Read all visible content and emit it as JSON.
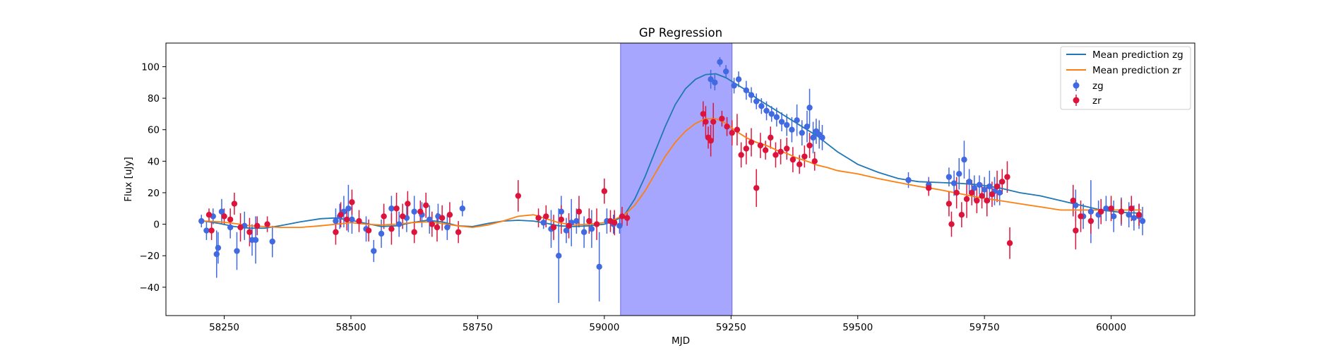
{
  "chart_data": {
    "type": "scatter",
    "title": "GP Regression",
    "xlabel": "MJD",
    "ylabel": "Flux [uJy]",
    "xlim": [
      58135,
      60165
    ],
    "ylim": [
      -58,
      115
    ],
    "xticks": [
      58250,
      58500,
      58750,
      59000,
      59250,
      59500,
      59750,
      60000
    ],
    "yticks": [
      -40,
      -20,
      0,
      20,
      40,
      60,
      80,
      100
    ],
    "grid": false,
    "legend_position": "top-right",
    "shaded_region": {
      "x_start": 59032,
      "x_end": 59252,
      "color": "#a6a6ff",
      "edge_color": "#6b6bdd"
    },
    "series": [
      {
        "name": "Mean prediction zg",
        "kind": "line",
        "color": "#1f77b4",
        "x": [
          58210,
          58240,
          58270,
          58300,
          58330,
          58360,
          58400,
          58440,
          58470,
          58500,
          58530,
          58560,
          58590,
          58620,
          58650,
          58680,
          58710,
          58740,
          58770,
          58800,
          58830,
          58860,
          58880,
          58910,
          58940,
          58970,
          59000,
          59020,
          59040,
          59060,
          59080,
          59100,
          59120,
          59140,
          59160,
          59180,
          59200,
          59220,
          59240,
          59260,
          59280,
          59300,
          59320,
          59340,
          59360,
          59380,
          59400,
          59420,
          59440,
          59460,
          59480,
          59500,
          59540,
          59580,
          59620,
          59660,
          59700,
          59740,
          59780,
          59820,
          59860,
          59900,
          59940,
          59980,
          60020,
          60060
        ],
        "y": [
          2,
          0.5,
          -1.5,
          -2.5,
          -2.5,
          -1,
          1.5,
          3.5,
          4,
          2.5,
          0.5,
          -1.5,
          -1,
          1,
          2.5,
          1.5,
          -1,
          -1.5,
          0.5,
          2,
          2.5,
          2,
          1,
          -1,
          -1.5,
          -1,
          0,
          2,
          6,
          16,
          30,
          46,
          62,
          76,
          86,
          92,
          95,
          95.5,
          93,
          89,
          85,
          80,
          76,
          72,
          68,
          64,
          60,
          56,
          51,
          46,
          42,
          38,
          33,
          29,
          27,
          26.5,
          26,
          25,
          23,
          20,
          18,
          15,
          12,
          9,
          7.5,
          7
        ]
      },
      {
        "name": "Mean prediction zr",
        "kind": "line",
        "color": "#ff7f0e",
        "x": [
          58210,
          58240,
          58270,
          58300,
          58330,
          58360,
          58400,
          58440,
          58470,
          58500,
          58530,
          58560,
          58590,
          58620,
          58650,
          58680,
          58710,
          58740,
          58770,
          58800,
          58830,
          58860,
          58880,
          58910,
          58940,
          58970,
          59000,
          59020,
          59040,
          59060,
          59080,
          59100,
          59120,
          59140,
          59160,
          59180,
          59200,
          59220,
          59240,
          59260,
          59280,
          59300,
          59320,
          59340,
          59360,
          59380,
          59400,
          59420,
          59440,
          59460,
          59480,
          59500,
          59540,
          59580,
          59620,
          59660,
          59700,
          59740,
          59780,
          59820,
          59860,
          59900,
          59940,
          59980,
          60020,
          60060
        ],
        "y": [
          2,
          1.5,
          0.5,
          -1,
          -1.5,
          -2,
          -2,
          -1,
          0,
          1,
          0,
          -0.5,
          0,
          1,
          1.5,
          0.5,
          -1,
          -2,
          -0.5,
          2,
          5,
          6,
          4,
          1,
          -0.5,
          0,
          1,
          3,
          6,
          12,
          21,
          32,
          43,
          52,
          59,
          64,
          67,
          67,
          64,
          59,
          55,
          52,
          50,
          47,
          45,
          42,
          40,
          37.5,
          36,
          34,
          33,
          32,
          29,
          26.5,
          24,
          22,
          19.5,
          17,
          15,
          13,
          11,
          9,
          9,
          9,
          9,
          9
        ]
      },
      {
        "name": "zg",
        "kind": "errorbar",
        "color": "#4169e1",
        "x": [
          58205,
          58215,
          58228,
          58235,
          58238,
          58245,
          58262,
          58275,
          58290,
          58305,
          58312,
          58345,
          58470,
          58478,
          58486,
          58495,
          58502,
          58530,
          58545,
          58560,
          58580,
          58595,
          58610,
          58625,
          58640,
          58655,
          58672,
          58690,
          58720,
          58880,
          58895,
          58910,
          58915,
          58925,
          58935,
          58945,
          58960,
          58975,
          58990,
          59005,
          59018,
          59030,
          59210,
          59218,
          59228,
          59240,
          59256,
          59265,
          59280,
          59290,
          59300,
          59310,
          59320,
          59330,
          59340,
          59350,
          59360,
          59370,
          59380,
          59390,
          59400,
          59405,
          59412,
          59418,
          59424,
          59430,
          59600,
          59640,
          59680,
          59690,
          59700,
          59710,
          59720,
          59730,
          59740,
          59750,
          59760,
          59770,
          59780,
          59930,
          59945,
          59960,
          59975,
          59990,
          60005,
          60020,
          60035,
          60045,
          60055,
          60062
        ],
        "y": [
          2,
          -4,
          5,
          -19,
          -15,
          8,
          -2,
          -17,
          -1,
          -10,
          -10,
          -11,
          2,
          5,
          8,
          10,
          3,
          -3,
          -17,
          -6,
          10,
          0,
          4,
          8,
          6,
          3,
          5,
          -2,
          10,
          1,
          -3,
          -20,
          8,
          -4,
          1,
          2,
          -5,
          -3,
          -27,
          2,
          0,
          -1,
          92,
          90,
          103,
          97,
          88,
          92,
          85,
          82,
          78,
          75,
          72,
          70,
          68,
          65,
          63,
          60,
          66,
          58,
          62,
          74,
          55,
          59,
          57,
          55,
          28,
          25,
          30,
          26,
          32,
          41,
          27,
          23,
          25,
          22,
          24,
          21,
          20,
          12,
          5,
          8,
          6,
          10,
          5,
          8,
          6,
          4,
          5,
          2
        ],
        "yerr": [
          4,
          6,
          5,
          15,
          10,
          8,
          7,
          12,
          9,
          10,
          15,
          10,
          8,
          8,
          10,
          15,
          9,
          8,
          7,
          9,
          8,
          8,
          9,
          10,
          8,
          9,
          8,
          8,
          5,
          4,
          12,
          30,
          10,
          8,
          15,
          8,
          10,
          12,
          22,
          8,
          6,
          5,
          6,
          5,
          3,
          4,
          5,
          5,
          6,
          5,
          5,
          5,
          6,
          5,
          6,
          6,
          7,
          8,
          10,
          8,
          10,
          12,
          10,
          8,
          9,
          8,
          5,
          5,
          6,
          8,
          10,
          12,
          8,
          8,
          6,
          8,
          10,
          9,
          8,
          10,
          8,
          20,
          9,
          8,
          10,
          9,
          8,
          8,
          8,
          9
        ]
      },
      {
        "name": "zr",
        "kind": "errorbar",
        "color": "#dc143c",
        "x": [
          58220,
          58225,
          58250,
          58262,
          58270,
          58282,
          58300,
          58315,
          58335,
          58470,
          58480,
          58492,
          58502,
          58516,
          58535,
          58565,
          58580,
          58590,
          58602,
          58612,
          58625,
          58637,
          58648,
          58660,
          58670,
          58680,
          58695,
          58712,
          58830,
          58870,
          58885,
          58900,
          58915,
          58930,
          58950,
          58970,
          58985,
          59000,
          59012,
          59020,
          59035,
          59045,
          59195,
          59200,
          59205,
          59210,
          59215,
          59232,
          59242,
          59252,
          59262,
          59270,
          59280,
          59290,
          59300,
          59308,
          59318,
          59328,
          59338,
          59348,
          59360,
          59372,
          59385,
          59395,
          59405,
          59415,
          59640,
          59680,
          59685,
          59695,
          59705,
          59715,
          59725,
          59735,
          59745,
          59755,
          59765,
          59775,
          59785,
          59795,
          59800,
          59925,
          59930,
          59940,
          59960,
          59980,
          60000,
          60020,
          60040,
          60055
        ],
        "y": [
          6,
          -4,
          5,
          3,
          13,
          -2,
          -5,
          -1,
          0,
          -5,
          6,
          3,
          14,
          2,
          -4,
          5,
          -3,
          10,
          5,
          13,
          -5,
          8,
          12,
          0,
          -2,
          4,
          6,
          -5,
          18,
          4,
          5,
          -2,
          3,
          -1,
          8,
          2,
          0,
          21,
          2,
          1,
          5,
          4,
          70,
          65,
          55,
          53,
          65,
          67,
          62,
          58,
          60,
          44,
          48,
          52,
          23,
          50,
          47,
          55,
          44,
          46,
          48,
          41,
          38,
          43,
          50,
          40,
          23,
          13,
          0,
          20,
          6,
          16,
          20,
          15,
          18,
          15,
          19,
          24,
          27,
          30,
          -12,
          15,
          -4,
          5,
          2,
          8,
          10,
          8,
          10,
          6
        ],
        "yerr": [
          4,
          6,
          5,
          7,
          7,
          9,
          9,
          6,
          5,
          8,
          8,
          7,
          8,
          7,
          7,
          8,
          10,
          10,
          8,
          8,
          7,
          7,
          8,
          8,
          9,
          8,
          8,
          7,
          10,
          6,
          7,
          8,
          9,
          8,
          10,
          8,
          10,
          8,
          7,
          8,
          6,
          5,
          8,
          10,
          7,
          10,
          12,
          5,
          6,
          8,
          10,
          8,
          10,
          9,
          12,
          8,
          6,
          7,
          8,
          8,
          7,
          8,
          6,
          7,
          8,
          6,
          5,
          8,
          8,
          10,
          8,
          12,
          8,
          8,
          8,
          10,
          8,
          10,
          8,
          10,
          10,
          10,
          12,
          10,
          8,
          8,
          8,
          8,
          8,
          7
        ]
      }
    ]
  }
}
